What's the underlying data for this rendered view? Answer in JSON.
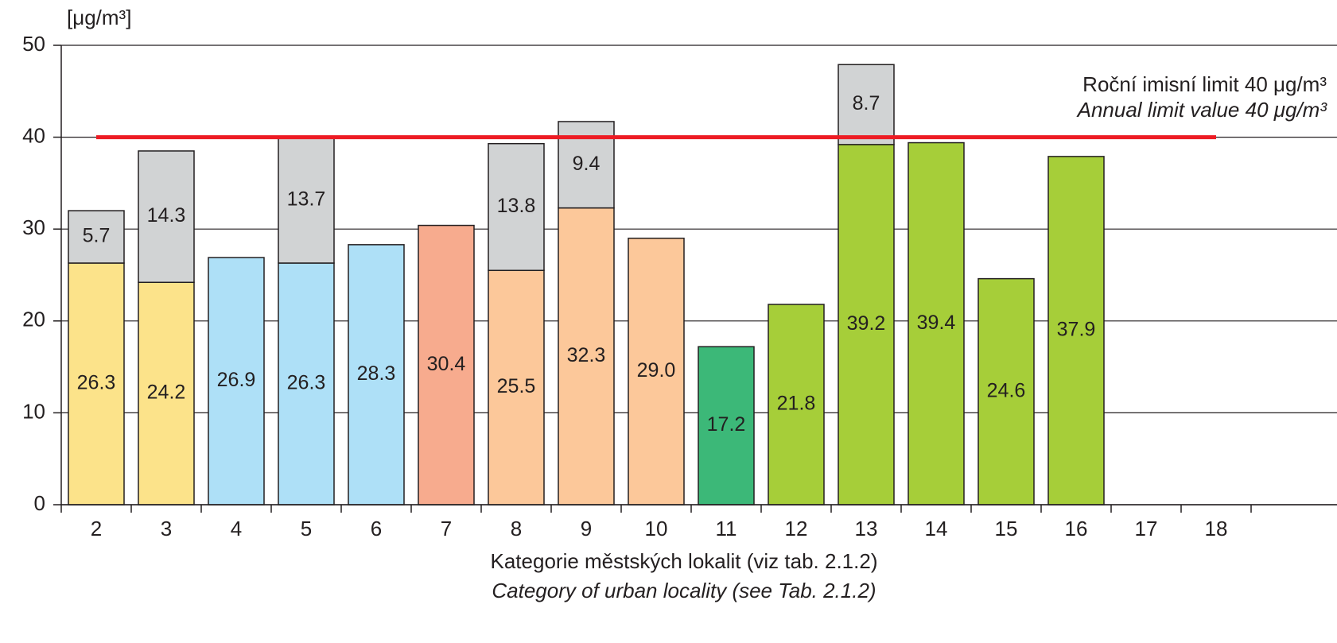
{
  "chart_data": {
    "type": "stacked-bar",
    "y_axis_label": "[μg/m³]",
    "x_axis_label": [
      "Kategorie městských lokalit (viz tab. 2.1.2)",
      "Category of urban locality (see Tab. 2.1.2)"
    ],
    "annotations": [
      "Roční imisní limit 40 μg/m³",
      "Annual limit value 40 μg/m³"
    ],
    "limit_line": {
      "value": 40,
      "color": "#ed1c24"
    },
    "categories": [
      "2",
      "3",
      "4",
      "5",
      "6",
      "7",
      "8",
      "9",
      "10",
      "11",
      "12",
      "13",
      "14",
      "15",
      "16",
      "17",
      "18"
    ],
    "series": [
      {
        "colors": [
          "#fce38a",
          "#fce38a",
          "#aee0f7",
          "#aee0f7",
          "#aee0f7",
          "#f7ab8e",
          "#fcc89a",
          "#fcc89a",
          "#fcc89a",
          "#3cb878",
          "#a6ce39",
          "#a6ce39",
          "#a6ce39",
          "#a6ce39",
          "#a6ce39",
          null,
          null
        ],
        "values": [
          26.3,
          24.2,
          26.9,
          26.3,
          28.3,
          30.4,
          25.5,
          32.3,
          29.0,
          17.2,
          21.8,
          39.2,
          39.4,
          24.6,
          37.9,
          null,
          null
        ],
        "value_labels": [
          "26.3",
          "24.2",
          "26.9",
          "26.3",
          "28.3",
          "30.4",
          "25.5",
          "32.3",
          "29.0",
          "17.2",
          "21.8",
          "39.2",
          "39.4",
          "24.6",
          "37.9",
          null,
          null
        ]
      },
      {
        "color": "#d1d3d4",
        "values": [
          5.7,
          14.3,
          null,
          13.7,
          null,
          null,
          13.8,
          9.4,
          null,
          null,
          null,
          8.7,
          null,
          null,
          null,
          null,
          null
        ]
      }
    ],
    "ylim": [
      0,
      50
    ],
    "yticks": [
      0,
      10,
      20,
      30,
      40,
      50
    ],
    "grid": true
  }
}
